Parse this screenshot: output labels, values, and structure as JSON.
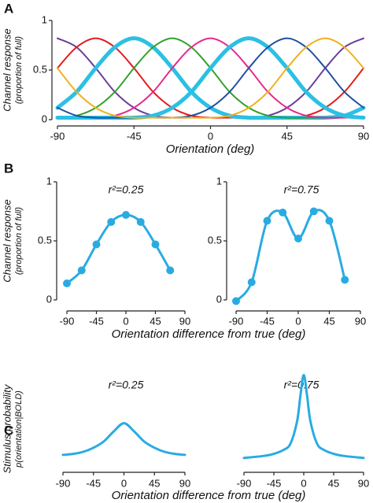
{
  "chart_data": [
    {
      "type": "line",
      "panel": "A",
      "ylabel": [
        "Channel response",
        "(proportion of full)"
      ],
      "xlabel": "Orientation (deg)",
      "xlim": [
        -90,
        90
      ],
      "ylim": [
        0,
        1
      ],
      "xticks": [
        -90,
        -45,
        0,
        45,
        90
      ],
      "yticks": [
        0,
        0.5,
        1
      ],
      "markers": false,
      "x": [
        -90,
        -78.75,
        -67.5,
        -56.25,
        -45,
        -33.75,
        -22.5,
        -11.25,
        0,
        11.25,
        22.5,
        33.75,
        45,
        56.25,
        67.5,
        78.75,
        90
      ],
      "series": [
        {
          "color": "#6a3d9a",
          "line_width": 2,
          "values": [
            0.82,
            0.73,
            0.52,
            0.28,
            0.12,
            0.04,
            0.02,
            0.02,
            0.02,
            0.02,
            0.02,
            0.04,
            0.12,
            0.28,
            0.52,
            0.73,
            0.82
          ]
        },
        {
          "color": "#e41a1c",
          "line_width": 2,
          "values": [
            0.52,
            0.73,
            0.82,
            0.73,
            0.52,
            0.28,
            0.12,
            0.04,
            0.02,
            0.02,
            0.02,
            0.02,
            0.02,
            0.04,
            0.12,
            0.28,
            0.52
          ]
        },
        {
          "color": "#2bc0e4",
          "line_width": 5,
          "values": [
            0.12,
            0.28,
            0.52,
            0.73,
            0.82,
            0.73,
            0.52,
            0.28,
            0.12,
            0.04,
            0.02,
            0.02,
            0.02,
            0.02,
            0.02,
            0.04,
            0.12
          ]
        },
        {
          "color": "#33a02c",
          "line_width": 2,
          "values": [
            0.02,
            0.04,
            0.12,
            0.28,
            0.52,
            0.73,
            0.82,
            0.73,
            0.52,
            0.28,
            0.12,
            0.04,
            0.02,
            0.02,
            0.02,
            0.02,
            0.02
          ]
        },
        {
          "color": "#e7298a",
          "line_width": 2,
          "values": [
            0.02,
            0.02,
            0.02,
            0.04,
            0.12,
            0.28,
            0.52,
            0.73,
            0.82,
            0.73,
            0.52,
            0.28,
            0.12,
            0.04,
            0.02,
            0.02,
            0.02
          ]
        },
        {
          "color": "#2bc0e4",
          "line_width": 5,
          "values": [
            0.02,
            0.02,
            0.02,
            0.02,
            0.02,
            0.04,
            0.12,
            0.28,
            0.52,
            0.73,
            0.82,
            0.73,
            0.52,
            0.28,
            0.12,
            0.04,
            0.02
          ]
        },
        {
          "color": "#1f4fa0",
          "line_width": 2,
          "values": [
            0.12,
            0.04,
            0.02,
            0.02,
            0.02,
            0.02,
            0.02,
            0.04,
            0.12,
            0.28,
            0.52,
            0.73,
            0.82,
            0.73,
            0.52,
            0.28,
            0.12
          ]
        },
        {
          "color": "#f0b020",
          "line_width": 2,
          "values": [
            0.52,
            0.28,
            0.12,
            0.04,
            0.02,
            0.02,
            0.02,
            0.02,
            0.02,
            0.04,
            0.12,
            0.28,
            0.52,
            0.73,
            0.82,
            0.73,
            0.52
          ]
        }
      ]
    },
    {
      "type": "line",
      "panel": "B",
      "ylabel": [
        "Channel response",
        "(proportion of full)"
      ],
      "xlabel": "Orientation difference from true (deg)",
      "annotation": "r²=0.25",
      "xlim": [
        -90,
        90
      ],
      "ylim": [
        0,
        1
      ],
      "xticks": [
        -90,
        -45,
        0,
        45,
        90
      ],
      "yticks": [
        0,
        0.5,
        1
      ],
      "markers": true,
      "x": [
        -90,
        -67.5,
        -45,
        -22.5,
        0,
        22.5,
        45,
        67.5
      ],
      "series": [
        {
          "color": "#29abe2",
          "line_width": 3,
          "values": [
            0.14,
            0.25,
            0.47,
            0.66,
            0.72,
            0.66,
            0.47,
            0.25
          ]
        }
      ]
    },
    {
      "type": "line",
      "annotation": "r²=0.75",
      "xlim": [
        -90,
        90
      ],
      "ylim": [
        0,
        1
      ],
      "xticks": [
        -90,
        -45,
        0,
        45,
        90
      ],
      "yticks": [
        0,
        0.5,
        1
      ],
      "markers": true,
      "x": [
        -90,
        -67.5,
        -45,
        -22.5,
        0,
        22.5,
        45,
        67.5
      ],
      "series": [
        {
          "color": "#29abe2",
          "line_width": 3,
          "values": [
            -0.01,
            0.15,
            0.67,
            0.74,
            0.52,
            0.75,
            0.67,
            0.17
          ]
        }
      ]
    },
    {
      "type": "line",
      "panel": "C",
      "ylabel": [
        "Stimulus probability",
        "p(orientation|BOLD)"
      ],
      "xlabel": "Orientation difference from true (deg)",
      "annotation": "r²=0.25",
      "xlim": [
        -90,
        90
      ],
      "ylim": [
        0,
        1
      ],
      "xticks": [
        -90,
        -45,
        0,
        45,
        90
      ],
      "markers": false,
      "x": [
        -90,
        -75,
        -60,
        -45,
        -30,
        -15,
        0,
        15,
        30,
        45,
        60,
        75,
        90
      ],
      "series": [
        {
          "color": "#29abe2",
          "line_width": 3,
          "values": [
            0.17,
            0.18,
            0.2,
            0.24,
            0.3,
            0.4,
            0.48,
            0.4,
            0.3,
            0.24,
            0.2,
            0.18,
            0.17
          ]
        }
      ]
    },
    {
      "type": "line",
      "annotation": "r²=0.75",
      "xlim": [
        -90,
        90
      ],
      "ylim": [
        0,
        1
      ],
      "xticks": [
        -90,
        -45,
        0,
        45,
        90
      ],
      "markers": false,
      "x": [
        -90,
        -60,
        -45,
        -30,
        -20,
        -10,
        -5,
        0,
        5,
        10,
        20,
        30,
        45,
        60,
        90
      ],
      "series": [
        {
          "color": "#29abe2",
          "line_width": 3,
          "values": [
            0.14,
            0.16,
            0.18,
            0.22,
            0.28,
            0.5,
            0.75,
            0.95,
            0.75,
            0.5,
            0.28,
            0.22,
            0.18,
            0.16,
            0.14
          ]
        }
      ]
    }
  ]
}
